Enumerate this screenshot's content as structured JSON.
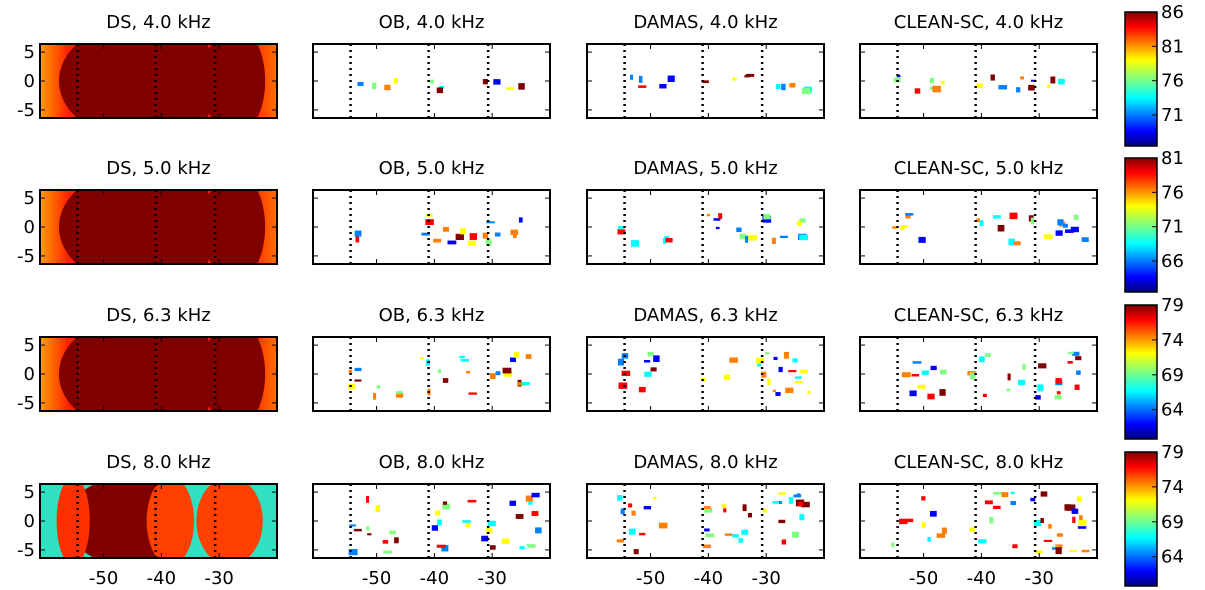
{
  "chart_data": {
    "type": "heatmap-grid",
    "colormap": "jet",
    "xlim": [
      -61,
      -20
    ],
    "xticks": [
      -50,
      -40,
      -30
    ],
    "ylim": [
      -6.4,
      6.4
    ],
    "yticks": [
      5,
      0,
      -5
    ],
    "dotted_lines": [
      -54.5,
      -41,
      -30.7
    ],
    "rows": [
      {
        "colorbar": {
          "clim": [
            66.5,
            86
          ],
          "ticks": [
            86,
            81,
            76,
            71
          ]
        },
        "panels": [
          {
            "title": "DS, 4.0 kHz"
          },
          {
            "title": "OB, 4.0 kHz"
          },
          {
            "title": "DAMAS, 4.0 kHz"
          },
          {
            "title": "CLEAN-SC, 4.0 kHz"
          }
        ]
      },
      {
        "colorbar": {
          "clim": [
            61.5,
            81
          ],
          "ticks": [
            81,
            76,
            71,
            66
          ]
        },
        "panels": [
          {
            "title": "DS, 5.0 kHz"
          },
          {
            "title": "OB, 5.0 kHz"
          },
          {
            "title": "DAMAS, 5.0 kHz"
          },
          {
            "title": "CLEAN-SC, 5.0 kHz"
          }
        ]
      },
      {
        "colorbar": {
          "clim": [
            59.8,
            79
          ],
          "ticks": [
            79,
            74,
            69,
            64
          ]
        },
        "panels": [
          {
            "title": "DS, 6.3 kHz"
          },
          {
            "title": "OB, 6.3 kHz"
          },
          {
            "title": "DAMAS, 6.3 kHz"
          },
          {
            "title": "CLEAN-SC, 6.3 kHz"
          }
        ]
      },
      {
        "colorbar": {
          "clim": [
            59.8,
            79
          ],
          "ticks": [
            79,
            74,
            69,
            64
          ]
        },
        "panels": [
          {
            "title": "DS, 8.0 kHz"
          },
          {
            "title": "OB, 8.0 kHz"
          },
          {
            "title": "DAMAS, 8.0 kHz"
          },
          {
            "title": "CLEAN-SC, 8.0 kHz"
          }
        ]
      }
    ]
  }
}
